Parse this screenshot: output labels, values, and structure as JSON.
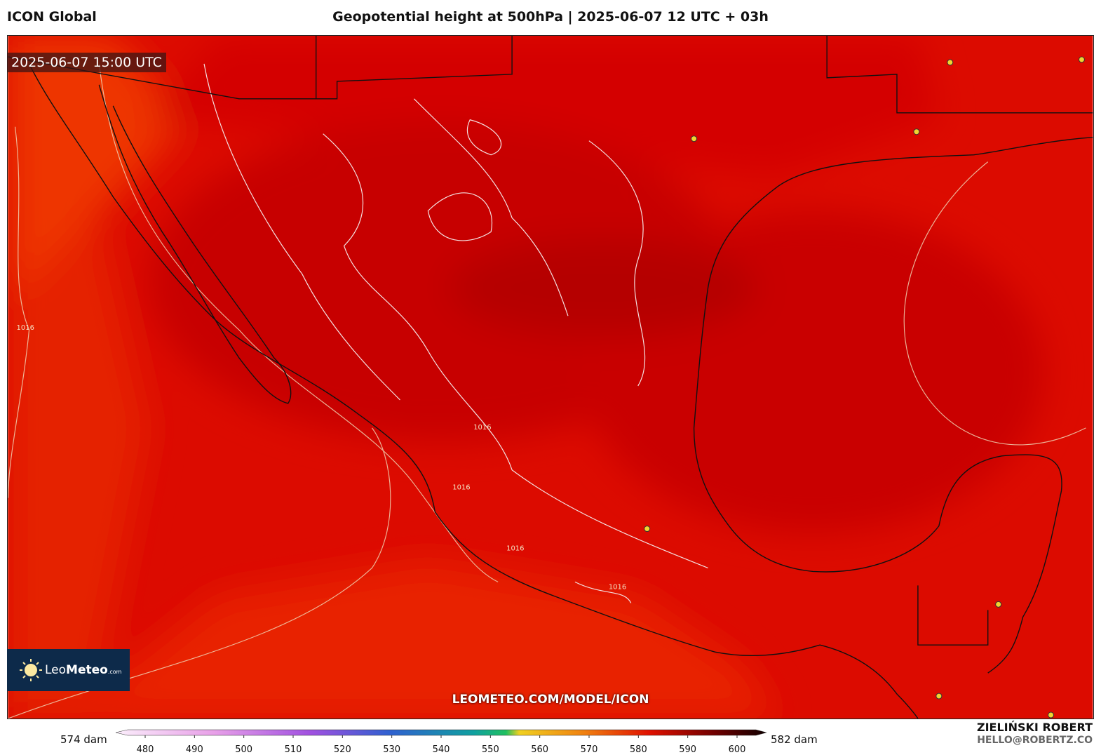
{
  "header": {
    "model": "ICON Global",
    "title": "Geopotential height at 500hPa | 2025-06-07 12 UTC + 03h"
  },
  "map": {
    "timestamp": "2025-06-07 15:00 UTC",
    "watermark": "LEOMETEO.COM/MODEL/ICON",
    "contour_label": "1016",
    "logo": {
      "name_light": "Leo",
      "name_bold": "Meteo",
      "suffix": ".com"
    }
  },
  "colorbar": {
    "min_label": "574 dam",
    "max_label": "582 dam",
    "ticks": [
      480,
      490,
      500,
      510,
      520,
      530,
      540,
      550,
      560,
      570,
      580,
      590,
      600
    ]
  },
  "author": {
    "name": "ZIELIŃSKI ROBERT",
    "email": "HELLO@ROBERTZ.CO"
  }
}
